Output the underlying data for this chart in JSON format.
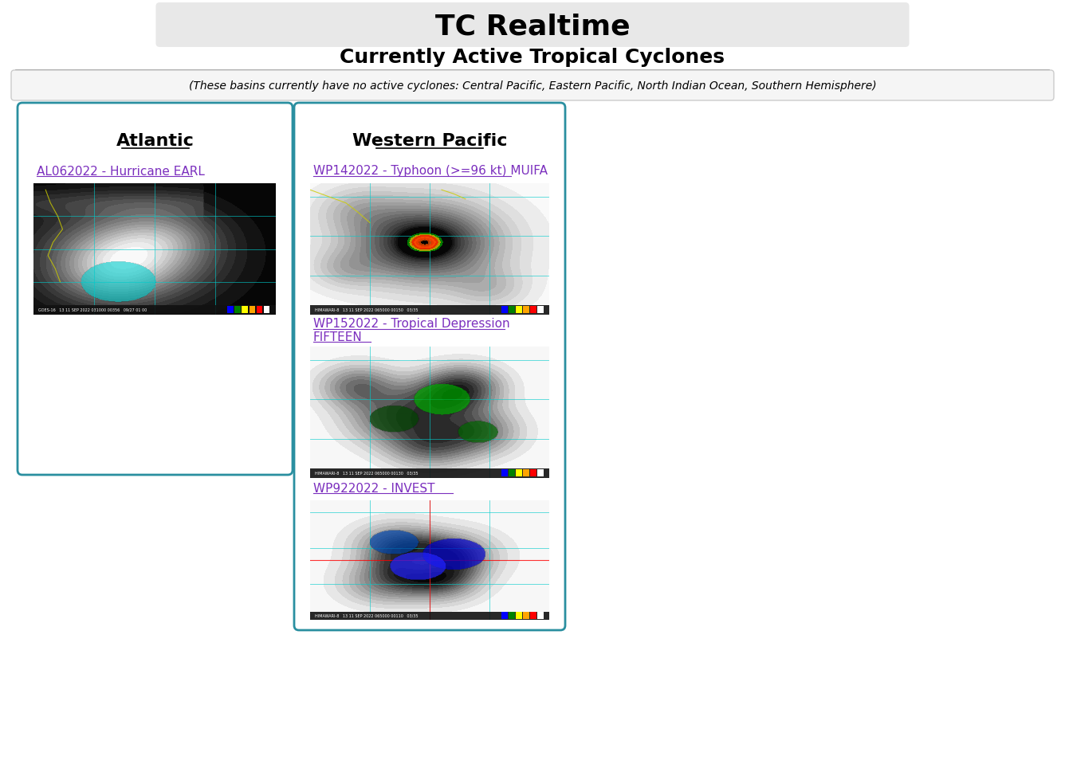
{
  "title": "TC Realtime",
  "subtitle": "Currently Active Tropical Cyclones",
  "inactive_basins_text": "(These basins currently have no active cyclones: Central Pacific, Eastern Pacific, North Indian Ocean, Southern Hemisphere)",
  "title_bg": "#e8e8e8",
  "title_color": "#000000",
  "subtitle_color": "#000000",
  "inactive_text_color": "#000000",
  "inactive_box_bg": "#f5f5f5",
  "inactive_box_border": "#cccccc",
  "panel_bg": "#ffffff",
  "panel_border": "#2a8fa0",
  "section_title_color": "#000000",
  "link_color": "#7b2fbe",
  "atlantic_title": "Atlantic",
  "western_pacific_title": "Western Pacific",
  "atlantic_link": "AL062022 - Hurricane EARL",
  "wp1_link": "WP142022 - Typhoon (>=96 kt) MUIFA",
  "wp2_link_line1": "WP152022 - Tropical Depression",
  "wp2_link_line2": "FIFTEEN",
  "wp3_link": "WP922022 - INVEST",
  "bg_color": "#ffffff"
}
